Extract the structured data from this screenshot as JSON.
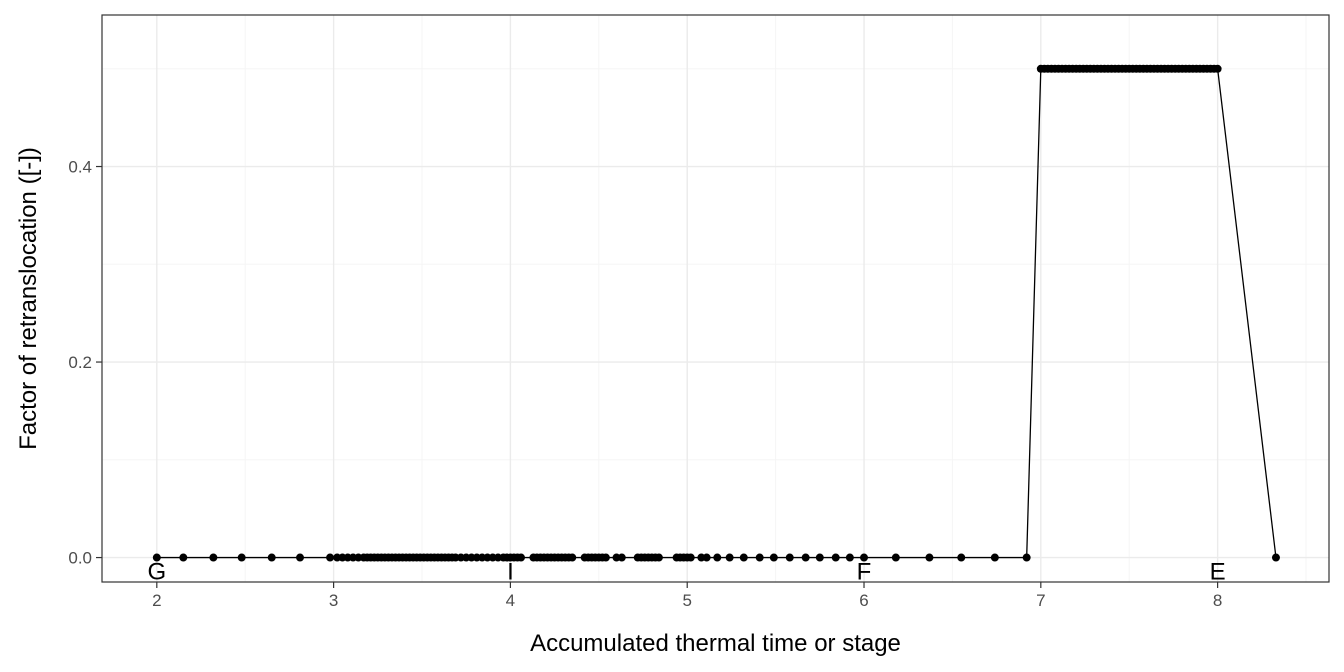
{
  "chart_data": {
    "type": "line",
    "xlabel": "Accumulated thermal time or stage",
    "ylabel": "Factor of retranslocation ([-])",
    "xlim": [
      1.69,
      8.63
    ],
    "ylim": [
      -0.025,
      0.555
    ],
    "x_ticks": [
      2,
      3,
      4,
      5,
      6,
      7,
      8
    ],
    "y_ticks": [
      0.0,
      0.2,
      0.4
    ],
    "x_tick_labels": [
      "2",
      "3",
      "4",
      "5",
      "6",
      "7",
      "8"
    ],
    "y_tick_labels": [
      "0.0",
      "0.2",
      "0.4"
    ],
    "grid": true,
    "series": [
      {
        "x": [
          2.0,
          2.15,
          2.32,
          2.48,
          2.65,
          2.81,
          2.98,
          3.02,
          3.05,
          3.08,
          3.11,
          3.14,
          3.17,
          3.19,
          3.21,
          3.23,
          3.25,
          3.27,
          3.29,
          3.31,
          3.33,
          3.35,
          3.37,
          3.39,
          3.41,
          3.43,
          3.45,
          3.47,
          3.49,
          3.51,
          3.53,
          3.55,
          3.57,
          3.59,
          3.61,
          3.63,
          3.65,
          3.67,
          3.69,
          3.72,
          3.75,
          3.78,
          3.81,
          3.84,
          3.87,
          3.9,
          3.93,
          3.96,
          3.98,
          4.0,
          4.02,
          4.04,
          4.06,
          4.13,
          4.15,
          4.17,
          4.19,
          4.21,
          4.23,
          4.25,
          4.27,
          4.29,
          4.31,
          4.33,
          4.35,
          4.42,
          4.44,
          4.46,
          4.48,
          4.5,
          4.52,
          4.54,
          4.6,
          4.63,
          4.72,
          4.74,
          4.76,
          4.78,
          4.8,
          4.82,
          4.84,
          4.94,
          4.96,
          4.98,
          5.0,
          5.02,
          5.08,
          5.11,
          5.17,
          5.24,
          5.32,
          5.41,
          5.49,
          5.58,
          5.67,
          5.75,
          5.84,
          5.92,
          6.0,
          6.18,
          6.37,
          6.55,
          6.74,
          6.92,
          7.0,
          7.02,
          7.04,
          7.06,
          7.08,
          7.1,
          7.12,
          7.14,
          7.16,
          7.18,
          7.2,
          7.22,
          7.24,
          7.26,
          7.28,
          7.3,
          7.32,
          7.34,
          7.36,
          7.38,
          7.4,
          7.42,
          7.44,
          7.46,
          7.48,
          7.5,
          7.52,
          7.54,
          7.56,
          7.58,
          7.6,
          7.62,
          7.64,
          7.66,
          7.68,
          7.7,
          7.72,
          7.74,
          7.76,
          7.78,
          7.8,
          7.82,
          7.84,
          7.86,
          7.88,
          7.9,
          7.92,
          7.94,
          7.96,
          7.98,
          8.0,
          8.33
        ],
        "y": [
          0,
          0,
          0,
          0,
          0,
          0,
          0,
          0,
          0,
          0,
          0,
          0,
          0,
          0,
          0,
          0,
          0,
          0,
          0,
          0,
          0,
          0,
          0,
          0,
          0,
          0,
          0,
          0,
          0,
          0,
          0,
          0,
          0,
          0,
          0,
          0,
          0,
          0,
          0,
          0,
          0,
          0,
          0,
          0,
          0,
          0,
          0,
          0,
          0,
          0,
          0,
          0,
          0,
          0,
          0,
          0,
          0,
          0,
          0,
          0,
          0,
          0,
          0,
          0,
          0,
          0,
          0,
          0,
          0,
          0,
          0,
          0,
          0,
          0,
          0,
          0,
          0,
          0,
          0,
          0,
          0,
          0,
          0,
          0,
          0,
          0,
          0,
          0,
          0,
          0,
          0,
          0,
          0,
          0,
          0,
          0,
          0,
          0,
          0,
          0,
          0,
          0,
          0,
          0,
          0.5,
          0.5,
          0.5,
          0.5,
          0.5,
          0.5,
          0.5,
          0.5,
          0.5,
          0.5,
          0.5,
          0.5,
          0.5,
          0.5,
          0.5,
          0.5,
          0.5,
          0.5,
          0.5,
          0.5,
          0.5,
          0.5,
          0.5,
          0.5,
          0.5,
          0.5,
          0.5,
          0.5,
          0.5,
          0.5,
          0.5,
          0.5,
          0.5,
          0.5,
          0.5,
          0.5,
          0.5,
          0.5,
          0.5,
          0.5,
          0.5,
          0.5,
          0.5,
          0.5,
          0.5,
          0.5,
          0.5,
          0.5,
          0.5,
          0.5,
          0.5,
          0
        ]
      }
    ],
    "annotations": [
      {
        "text": "G",
        "x": 2,
        "y": -0.016
      },
      {
        "text": "I",
        "x": 4,
        "y": -0.016
      },
      {
        "text": "F",
        "x": 6,
        "y": -0.016
      },
      {
        "text": "E",
        "x": 8,
        "y": -0.016
      }
    ],
    "colors": {
      "line": "#000000",
      "point": "#000000",
      "grid_major": "#ebebeb",
      "grid_minor": "#f5f5f5",
      "panel_border": "#333333",
      "tick_text": "#4d4d4d"
    }
  }
}
